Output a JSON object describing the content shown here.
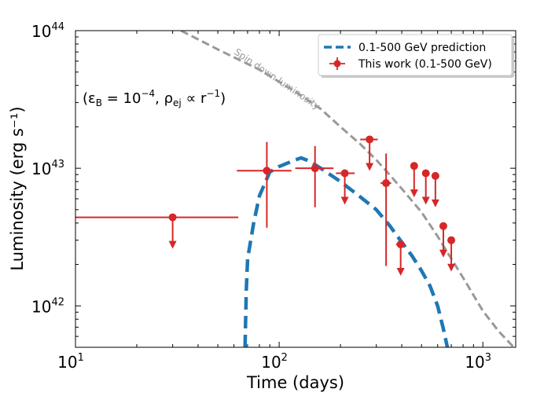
{
  "chart_data": {
    "type": "scatter",
    "xscale": "log",
    "yscale": "log",
    "xlim": [
      10,
      1450
    ],
    "ylim": [
      5e+41,
      1e+44
    ],
    "xlabel": "Time (days)",
    "ylabel": "Luminosity (erg s⁻¹)",
    "x_ticks": [
      {
        "value": 10,
        "base": "10",
        "exp": "1"
      },
      {
        "value": 100,
        "base": "10",
        "exp": "2"
      },
      {
        "value": 1000,
        "base": "10",
        "exp": "3"
      }
    ],
    "y_ticks": [
      {
        "value": 1e+42,
        "base": "10",
        "exp": "42"
      },
      {
        "value": 1e+43,
        "base": "10",
        "exp": "43"
      },
      {
        "value": 1e+44,
        "base": "10",
        "exp": "44"
      }
    ],
    "annotation": {
      "prefix": "(ε",
      "prefix_sub": "B",
      "eq": " = 10",
      "eq_sup": "−4",
      "mid": ",  ρ",
      "mid_sub": "ej",
      "prop": " ∝ r",
      "prop_sup": "−1",
      "suffix": ")"
    },
    "legend": {
      "location": "top-right",
      "entries": [
        {
          "label": "0.1-500 GeV prediction",
          "style": "dashed-line",
          "color": "#1f77b4"
        },
        {
          "label": "This work (0.1-500 GeV)",
          "style": "errorbar-point",
          "color": "#d62728"
        }
      ]
    },
    "series": [
      {
        "name": "0.1-500 GeV prediction",
        "kind": "line",
        "style": "dashed",
        "color": "#1f77b4",
        "points": [
          [
            68,
            5e+41
          ],
          [
            69,
            1.3e+42
          ],
          [
            70,
            2.2e+42
          ],
          [
            75,
            4e+42
          ],
          [
            80,
            6.3e+42
          ],
          [
            90,
            9.4e+42
          ],
          [
            100,
            1.03e+43
          ],
          [
            115,
            1.12e+43
          ],
          [
            128,
            1.19e+43
          ],
          [
            140,
            1.13e+43
          ],
          [
            160,
            1e+43
          ],
          [
            200,
            8e+42
          ],
          [
            250,
            6.2e+42
          ],
          [
            300,
            5e+42
          ],
          [
            350,
            3.8e+42
          ],
          [
            400,
            2.9e+42
          ],
          [
            450,
            2.3e+42
          ],
          [
            500,
            1.8e+42
          ],
          [
            550,
            1.4e+42
          ],
          [
            600,
            1e+42
          ],
          [
            640,
            6.8e+41
          ],
          [
            670,
            5e+41
          ]
        ]
      },
      {
        "name": "Spin down luminosity",
        "kind": "line",
        "style": "dashed",
        "color": "#999999",
        "points": [
          [
            33,
            1e+44
          ],
          [
            50,
            7.3e+43
          ],
          [
            80,
            5.2e+43
          ],
          [
            120,
            3.6e+43
          ],
          [
            160,
            2.7e+43
          ],
          [
            200,
            2e+43
          ],
          [
            250,
            1.5e+43
          ],
          [
            300,
            1.15e+43
          ],
          [
            350,
            8.9e+42
          ],
          [
            400,
            7.1e+42
          ],
          [
            500,
            4.8e+42
          ],
          [
            600,
            3.2e+42
          ],
          [
            700,
            2.2e+42
          ],
          [
            800,
            1.6e+42
          ],
          [
            1000,
            9.2e+41
          ],
          [
            1200,
            6.5e+41
          ],
          [
            1420,
            5e+41
          ]
        ]
      },
      {
        "name": "This work (0.1-500 GeV)",
        "kind": "errorbar",
        "color": "#d62728",
        "points": [
          {
            "x": 30,
            "y": 4.4e+42,
            "xerr": [
              10,
              63
            ],
            "upper_limit": true
          },
          {
            "x": 87,
            "y": 9.6e+42,
            "xerr": [
              62,
              115
            ],
            "yerr": [
              3.7e+42,
              1.55e+43
            ]
          },
          {
            "x": 150,
            "y": 1e+43,
            "xerr": [
              120,
              185
            ],
            "yerr": [
              5.2e+42,
              1.45e+43
            ]
          },
          {
            "x": 210,
            "y": 9.2e+42,
            "xerr": [
              190,
              235
            ],
            "upper_limit": true
          },
          {
            "x": 278,
            "y": 1.62e+43,
            "xerr": [
              250,
              305
            ],
            "upper_limit": true
          },
          {
            "x": 335,
            "y": 7.8e+42,
            "xerr": [
              315,
              355
            ],
            "yerr": [
              1.95e+42,
              1.28e+43
            ]
          },
          {
            "x": 395,
            "y": 2.8e+42,
            "xerr": [
              375,
              415
            ],
            "upper_limit": true
          },
          {
            "x": 460,
            "y": 1.04e+43,
            "upper_limit": true
          },
          {
            "x": 525,
            "y": 9.2e+42,
            "upper_limit": true
          },
          {
            "x": 585,
            "y": 8.8e+42,
            "upper_limit": true
          },
          {
            "x": 640,
            "y": 3.8e+42,
            "upper_limit": true
          },
          {
            "x": 700,
            "y": 3e+42,
            "upper_limit": true
          }
        ]
      }
    ],
    "curve_label": "Spin down luminosity"
  }
}
